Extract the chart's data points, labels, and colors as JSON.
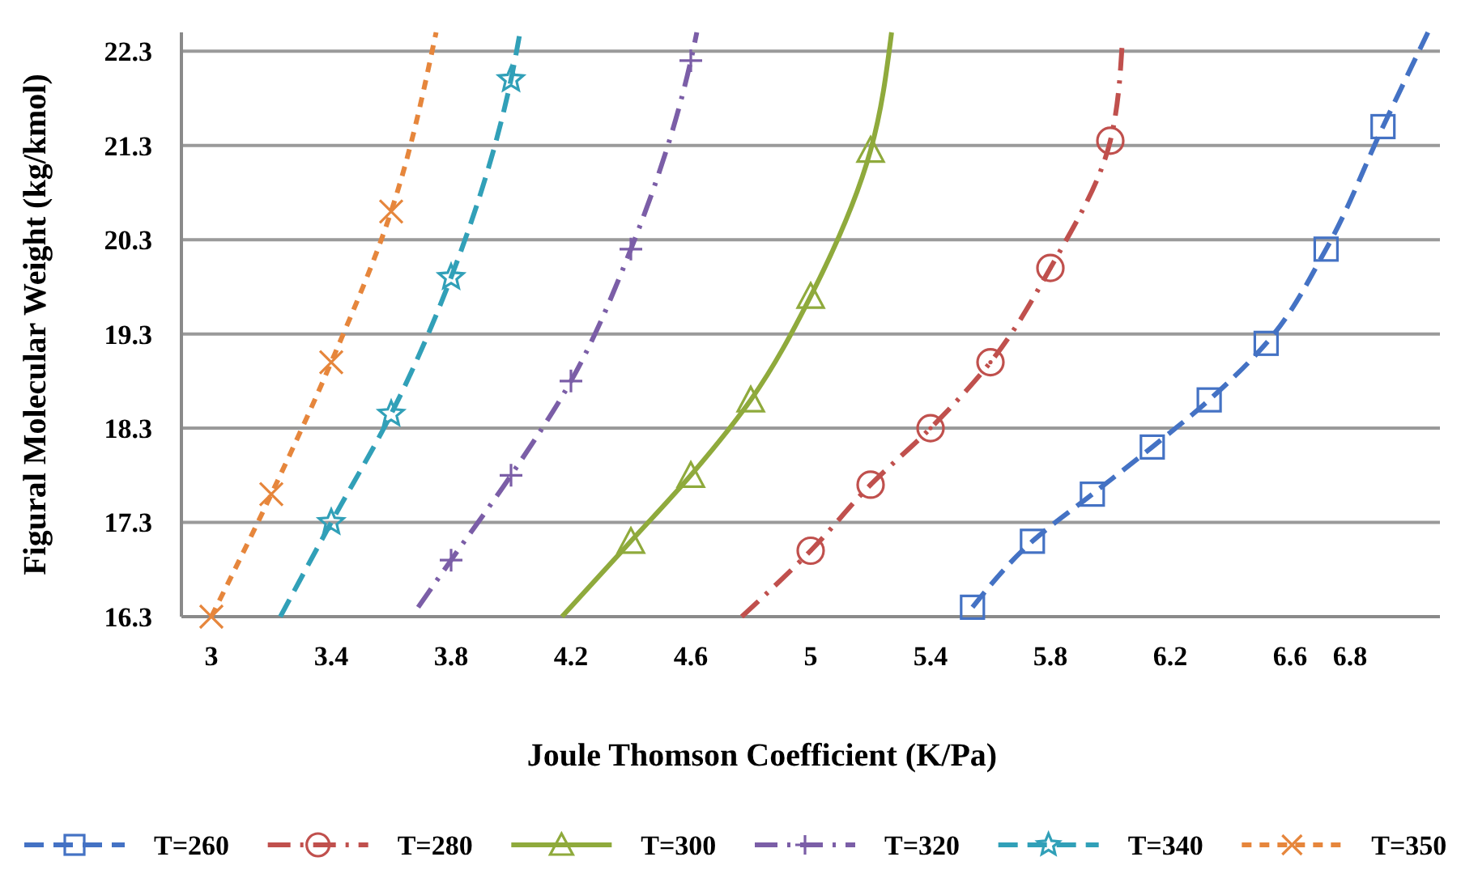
{
  "chart_data": {
    "type": "line",
    "xlabel": "Joule Thomson Coefficient (K/Pa)",
    "ylabel": "Figural Molecular Weight (kg/kmol)",
    "xlim": [
      2.9,
      7.1
    ],
    "xticks": [
      3,
      3.4,
      3.8,
      4.2,
      4.6,
      5,
      5.4,
      5.8,
      6.2,
      6.6,
      6.8
    ],
    "ylim": [
      16.3,
      22.5
    ],
    "yticks": [
      16.3,
      17.3,
      18.3,
      19.3,
      20.3,
      21.3,
      22.3
    ],
    "grid": "y",
    "legend": "bottom",
    "series": [
      {
        "name": "T=260",
        "color": "#4472c4",
        "line_style": "dashed",
        "marker": "none",
        "x": [
          5.54,
          5.74,
          5.94,
          6.14,
          6.33,
          6.52,
          6.72,
          6.91,
          7.06
        ],
        "values": [
          16.4,
          17.1,
          17.6,
          18.1,
          18.6,
          19.2,
          20.2,
          21.5,
          22.5
        ]
      },
      {
        "color": "#4472c4",
        "type": "scatter",
        "marker": "square",
        "x": [
          5.54,
          5.74,
          5.94,
          6.14,
          6.33,
          6.52,
          6.72,
          6.91
        ],
        "values": [
          16.4,
          17.1,
          17.6,
          18.1,
          18.6,
          19.2,
          20.2,
          21.5
        ]
      },
      {
        "name": "T=280",
        "color": "#c0504d",
        "line_style": "dashdot",
        "marker": "none",
        "x": [
          4.77,
          5.0,
          5.2,
          5.4,
          5.6,
          5.8,
          6.0,
          6.04
        ],
        "values": [
          16.3,
          17.0,
          17.7,
          18.3,
          19.0,
          20.0,
          21.35,
          22.4
        ]
      },
      {
        "color": "#c0504d",
        "type": "scatter",
        "marker": "circle",
        "x": [
          5.0,
          5.2,
          5.4,
          5.6,
          5.8,
          6.0
        ],
        "values": [
          17.0,
          17.7,
          18.3,
          19.0,
          20.0,
          21.35
        ]
      },
      {
        "name": "T=300",
        "color": "#8faa3c",
        "line_style": "solid",
        "marker": "none",
        "x": [
          4.17,
          4.4,
          4.6,
          4.8,
          5.0,
          5.2,
          5.27
        ],
        "values": [
          16.3,
          17.1,
          17.8,
          18.6,
          19.7,
          21.25,
          22.5
        ]
      },
      {
        "color": "#8faa3c",
        "type": "scatter",
        "marker": "triangle",
        "x": [
          4.4,
          4.6,
          4.8,
          5.0,
          5.2
        ],
        "values": [
          17.1,
          17.8,
          18.6,
          19.7,
          21.25
        ]
      },
      {
        "name": "T=320",
        "color": "#7b5ea7",
        "line_style": "dashdot",
        "marker": "none",
        "x": [
          3.69,
          3.8,
          4.0,
          4.2,
          4.4,
          4.6,
          4.62
        ],
        "values": [
          16.4,
          16.9,
          17.8,
          18.8,
          20.2,
          22.2,
          22.5
        ]
      },
      {
        "color": "#7b5ea7",
        "type": "scatter",
        "marker": "cross",
        "x": [
          3.8,
          4.0,
          4.2,
          4.4,
          4.6
        ],
        "values": [
          16.9,
          17.8,
          18.8,
          20.2,
          22.2
        ]
      },
      {
        "name": "T=340",
        "color": "#31a0b8",
        "line_style": "dashed",
        "marker": "none",
        "x": [
          3.23,
          3.4,
          3.6,
          3.8,
          4.0,
          4.03
        ],
        "values": [
          16.3,
          17.3,
          18.45,
          19.9,
          22.0,
          22.5
        ]
      },
      {
        "color": "#31a0b8",
        "type": "scatter",
        "marker": "star",
        "x": [
          3.4,
          3.6,
          3.8,
          4.0
        ],
        "values": [
          17.3,
          18.45,
          19.9,
          22.0
        ]
      },
      {
        "name": "T=350",
        "color": "#e6863c",
        "line_style": "dotted",
        "marker": "none",
        "x": [
          3.0,
          3.2,
          3.4,
          3.6,
          3.75
        ],
        "values": [
          16.3,
          17.6,
          19.0,
          20.6,
          22.5
        ]
      },
      {
        "color": "#e6863c",
        "type": "scatter",
        "marker": "x",
        "x": [
          3.0,
          3.2,
          3.4,
          3.6
        ],
        "values": [
          16.3,
          17.6,
          19.0,
          20.6
        ]
      }
    ]
  }
}
